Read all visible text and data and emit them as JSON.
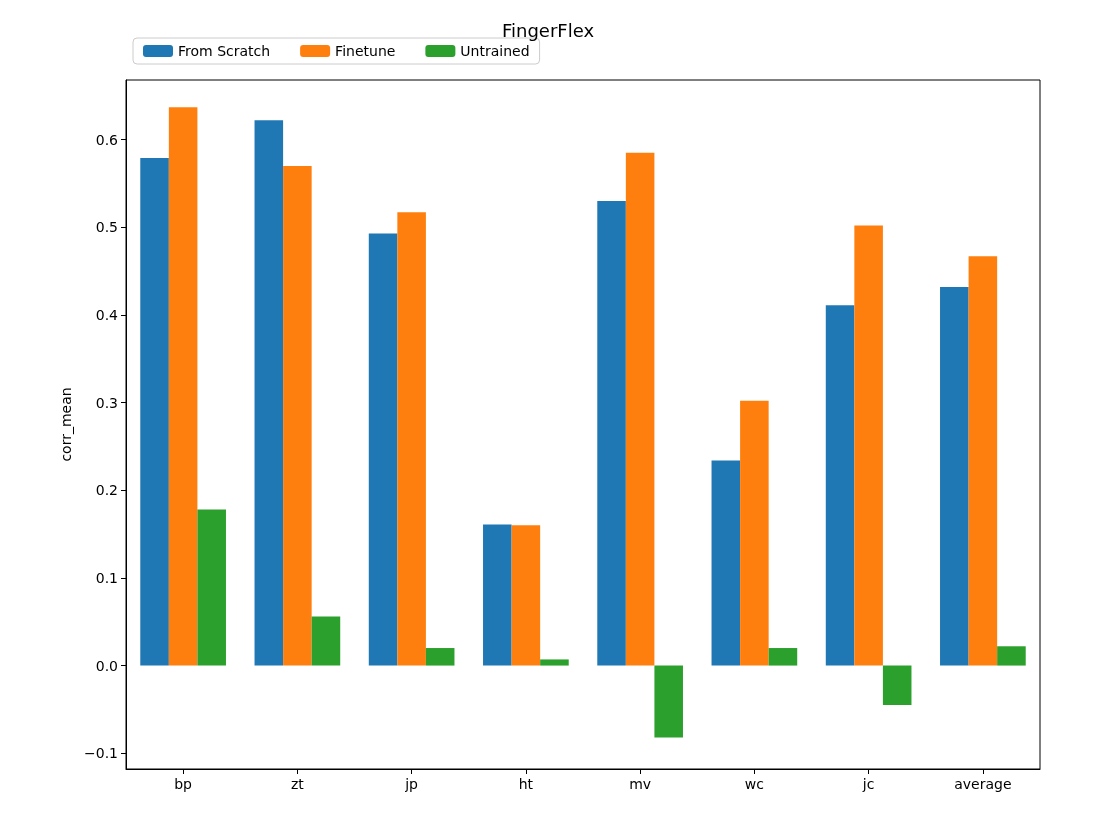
{
  "chart_data": {
    "type": "bar",
    "title": "FingerFlex",
    "ylabel": "corr_mean",
    "categories": [
      "bp",
      "zt",
      "jp",
      "ht",
      "mv",
      "wc",
      "jc",
      "average"
    ],
    "series": [
      {
        "name": "From Scratch",
        "color": "#1f77b4",
        "values": [
          0.579,
          0.622,
          0.493,
          0.161,
          0.53,
          0.234,
          0.411,
          0.432
        ]
      },
      {
        "name": "Finetune",
        "color": "#ff7f0e",
        "values": [
          0.637,
          0.57,
          0.517,
          0.16,
          0.585,
          0.302,
          0.502,
          0.467
        ]
      },
      {
        "name": "Untrained",
        "color": "#2ca02c",
        "values": [
          0.178,
          0.056,
          0.02,
          0.007,
          -0.082,
          0.02,
          -0.045,
          0.022
        ]
      }
    ],
    "ylim": [
      -0.118,
      0.668
    ],
    "yticks": [
      {
        "value": -0.1,
        "label": "−0.1"
      },
      {
        "value": 0,
        "label": "0.0"
      },
      {
        "value": 0.1,
        "label": "0.1"
      },
      {
        "value": 0.2,
        "label": "0.2"
      },
      {
        "value": 0.3,
        "label": "0.3"
      },
      {
        "value": 0.4,
        "label": "0.4"
      },
      {
        "value": 0.5,
        "label": "0.5"
      },
      {
        "value": 0.6,
        "label": "0.6"
      }
    ],
    "grid": false,
    "legend": "top left"
  }
}
